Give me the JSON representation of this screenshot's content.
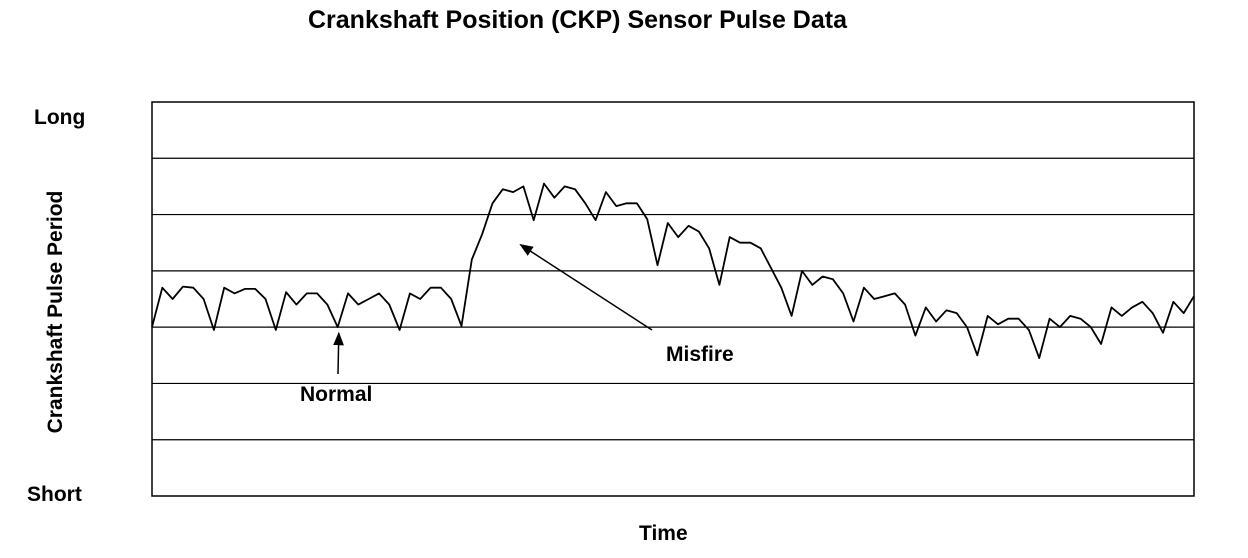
{
  "chart_data": {
    "type": "line",
    "title": "Crankshaft Position (CKP) Sensor Pulse Data",
    "xlabel": "Time",
    "ylabel": "Crankshaft Pulse Period",
    "y_top_label": "Long",
    "y_bottom_label": "Short",
    "xlim": [
      0,
      184
    ],
    "ylim": [
      0,
      7
    ],
    "grid": true,
    "series": [
      {
        "values": [
          3.0,
          3.7,
          3.5,
          3.72,
          3.7,
          3.5,
          2.95,
          3.7,
          3.6,
          3.68,
          3.68,
          3.5,
          2.95,
          3.62,
          3.4,
          3.6,
          3.6,
          3.4,
          3.0,
          3.6,
          3.4,
          3.5,
          3.6,
          3.4,
          2.95,
          3.6,
          3.5,
          3.7,
          3.7,
          3.5,
          3.02,
          4.2,
          4.65,
          5.2,
          5.45,
          5.4,
          5.5,
          4.9,
          5.55,
          5.3,
          5.5,
          5.45,
          5.2,
          4.9,
          5.4,
          5.15,
          5.2,
          5.2,
          4.92,
          4.1,
          4.85,
          4.6,
          4.8,
          4.7,
          4.4,
          3.75,
          4.6,
          4.5,
          4.5,
          4.4,
          4.05,
          3.7,
          3.2,
          4.0,
          3.75,
          3.9,
          3.85,
          3.6,
          3.1,
          3.7,
          3.5,
          3.55,
          3.6,
          3.4,
          2.85,
          3.35,
          3.1,
          3.3,
          3.25,
          3.0,
          2.5,
          3.2,
          3.05,
          3.15,
          3.15,
          2.95,
          2.45,
          3.15,
          3.0,
          3.2,
          3.15,
          3.0,
          2.7,
          3.35,
          3.2,
          3.35,
          3.45,
          3.25,
          2.9,
          3.45,
          3.25,
          3.55
        ]
      }
    ],
    "annotations": [
      {
        "text": "Normal",
        "point_x": 33,
        "point_y": 3.0
      },
      {
        "text": "Misfire",
        "point_x": 63,
        "point_y": 4.6
      }
    ]
  }
}
